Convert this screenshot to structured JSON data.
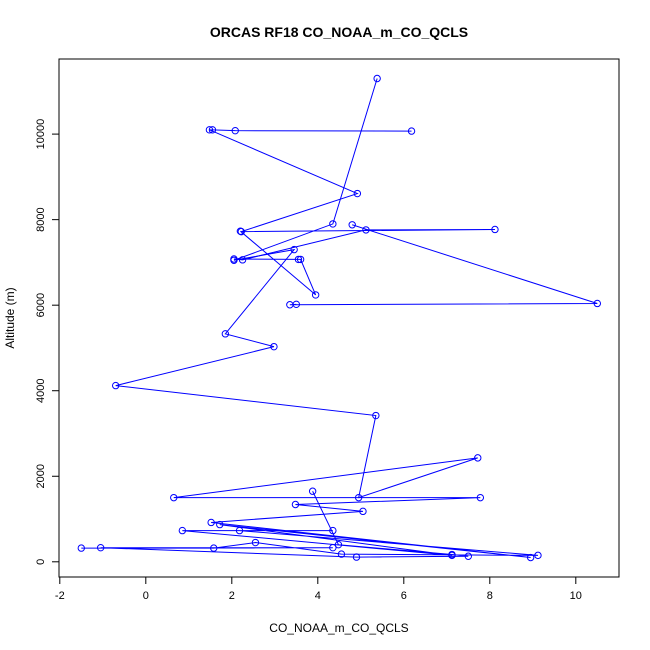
{
  "chart_data": {
    "type": "line",
    "title": "ORCAS RF18 CO_NOAA_m_CO_QCLS",
    "xlabel": "CO_NOAA_m_CO_QCLS",
    "ylabel": "Altitude (m)",
    "xlim": [
      -2,
      11
    ],
    "ylim": [
      0,
      11500
    ],
    "xticks": [
      -2,
      0,
      2,
      4,
      6,
      8,
      10
    ],
    "yticks": [
      0,
      2000,
      4000,
      6000,
      8000,
      10000
    ],
    "grid": false,
    "color": "#0000ff",
    "series": [
      {
        "x": [
          5.38,
          4.35,
          2.05,
          3.45,
          1.85,
          2.98,
          -0.7,
          5.35,
          4.95,
          7.72,
          0.65,
          7.78,
          3.48,
          5.05,
          1.52,
          8.95,
          1.72,
          7.12,
          0.85,
          4.35,
          2.18,
          9.12,
          4.55,
          2.55,
          1.58,
          -1.5,
          4.35,
          -1.05,
          4.9,
          7.5,
          7.12,
          4.48,
          3.88
        ],
        "y": [
          11300,
          7900,
          7050,
          7300,
          5330,
          5030,
          4120,
          3420,
          1500,
          2430,
          1500,
          1500,
          1340,
          1180,
          920,
          100,
          870,
          150,
          730,
          730,
          730,
          150,
          180,
          450,
          320,
          320,
          330,
          330,
          110,
          130,
          170,
          400,
          1650
        ]
      },
      {
        "x": [
          6.18,
          2.08,
          1.55,
          1.48,
          4.92,
          2.22,
          8.12,
          5.12,
          2.25,
          2.05,
          3.55,
          3.6,
          3.95,
          2.2
        ],
        "y": [
          10070,
          10080,
          10100,
          10100,
          8610,
          7720,
          7770,
          7760,
          7060,
          7080,
          7070,
          7070,
          6240,
          7730
        ]
      },
      {
        "x": [
          4.8,
          10.5,
          3.35,
          3.5
        ],
        "y": [
          7880,
          6040,
          6010,
          6020
        ]
      }
    ]
  }
}
